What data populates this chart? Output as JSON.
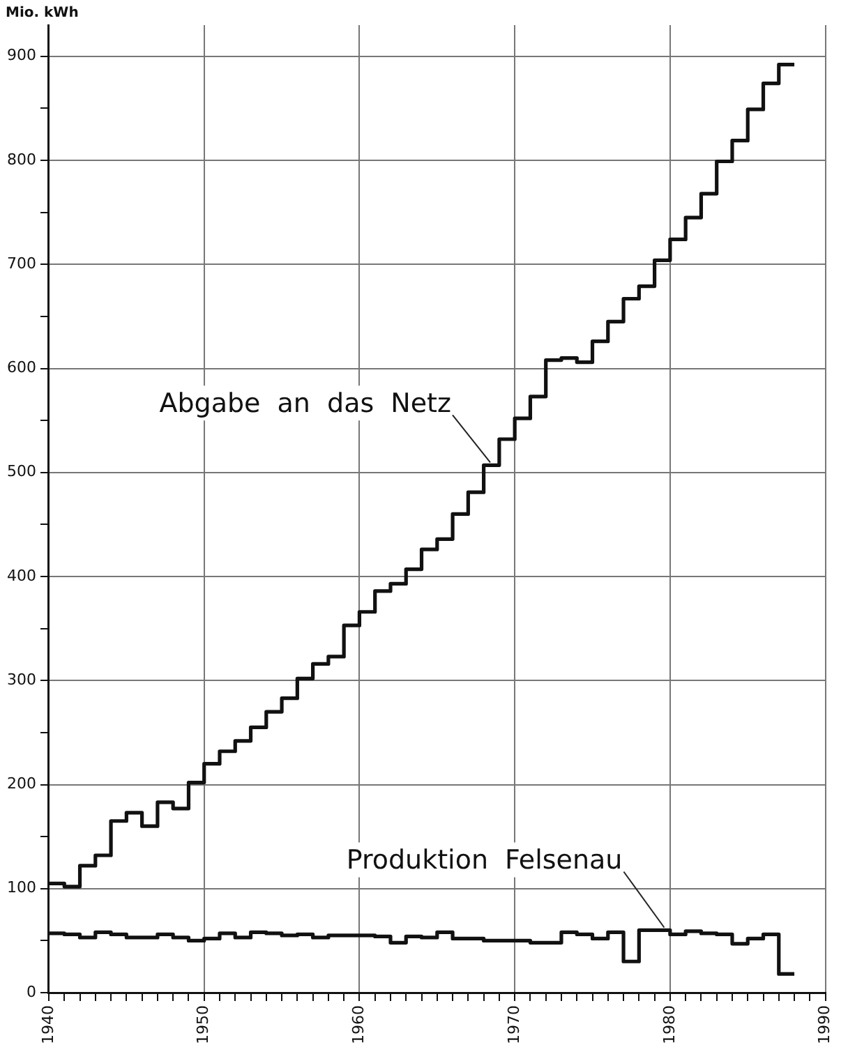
{
  "chart_data": {
    "type": "step",
    "ylabel": "Mio. kWh",
    "marker": "none",
    "grid": true,
    "x": [
      1940,
      1941,
      1942,
      1943,
      1944,
      1945,
      1946,
      1947,
      1948,
      1949,
      1950,
      1951,
      1952,
      1953,
      1954,
      1955,
      1956,
      1957,
      1958,
      1959,
      1960,
      1961,
      1962,
      1963,
      1964,
      1965,
      1966,
      1967,
      1968,
      1969,
      1970,
      1971,
      1972,
      1973,
      1974,
      1975,
      1976,
      1977,
      1978,
      1979,
      1980,
      1981,
      1982,
      1983,
      1984,
      1985,
      1986,
      1987,
      1988
    ],
    "xlim": [
      1940,
      1990
    ],
    "xticks": [
      1940,
      {
        "value": 1941,
        "label": null
      },
      {
        "value": 1942,
        "label": null
      },
      {
        "value": 1943,
        "label": null
      },
      {
        "value": 1944,
        "label": null
      },
      {
        "value": 1945,
        "label": null
      },
      {
        "value": 1946,
        "label": null
      },
      {
        "value": 1947,
        "label": null
      },
      {
        "value": 1948,
        "label": null
      },
      {
        "value": 1949,
        "label": null
      },
      1950,
      {
        "value": 1951,
        "label": null
      },
      {
        "value": 1952,
        "label": null
      },
      {
        "value": 1953,
        "label": null
      },
      {
        "value": 1954,
        "label": null
      },
      {
        "value": 1955,
        "label": null
      },
      {
        "value": 1956,
        "label": null
      },
      {
        "value": 1957,
        "label": null
      },
      {
        "value": 1958,
        "label": null
      },
      {
        "value": 1959,
        "label": null
      },
      1960,
      {
        "value": 1961,
        "label": null
      },
      {
        "value": 1962,
        "label": null
      },
      {
        "value": 1963,
        "label": null
      },
      {
        "value": 1964,
        "label": null
      },
      {
        "value": 1965,
        "label": null
      },
      {
        "value": 1966,
        "label": null
      },
      {
        "value": 1967,
        "label": null
      },
      {
        "value": 1968,
        "label": null
      },
      {
        "value": 1969,
        "label": null
      },
      1970,
      {
        "value": 1971,
        "label": null
      },
      {
        "value": 1972,
        "label": null
      },
      {
        "value": 1973,
        "label": null
      },
      {
        "value": 1974,
        "label": null
      },
      {
        "value": 1975,
        "label": null
      },
      {
        "value": 1976,
        "label": null
      },
      {
        "value": 1977,
        "label": null
      },
      {
        "value": 1978,
        "label": null
      },
      {
        "value": 1979,
        "label": null
      },
      1980,
      {
        "value": 1981,
        "label": null
      },
      {
        "value": 1982,
        "label": null
      },
      {
        "value": 1983,
        "label": null
      },
      {
        "value": 1984,
        "label": null
      },
      {
        "value": 1985,
        "label": null
      },
      {
        "value": 1986,
        "label": null
      },
      {
        "value": 1987,
        "label": null
      },
      {
        "value": 1988,
        "label": null
      },
      {
        "value": 1989,
        "label": null
      },
      1990
    ],
    "ylim": [
      0,
      930
    ],
    "yticks": [
      0,
      {
        "value": 50,
        "label": null
      },
      100,
      {
        "value": 150,
        "label": null
      },
      200,
      {
        "value": 250,
        "label": null
      },
      300,
      {
        "value": 350,
        "label": null
      },
      400,
      {
        "value": 450,
        "label": null
      },
      500,
      {
        "value": 550,
        "label": null
      },
      600,
      {
        "value": 650,
        "label": null
      },
      700,
      {
        "value": 750,
        "label": null
      },
      800,
      {
        "value": 850,
        "label": null
      },
      900
    ],
    "series": [
      {
        "name": "Abgabe an das Netz",
        "color": "#111111",
        "values": [
          105,
          102,
          122,
          132,
          165,
          173,
          160,
          183,
          177,
          202,
          220,
          232,
          242,
          255,
          270,
          283,
          302,
          316,
          323,
          353,
          366,
          386,
          393,
          407,
          426,
          436,
          460,
          481,
          507,
          532,
          552,
          573,
          608,
          610,
          606,
          626,
          645,
          667,
          679,
          704,
          724,
          745,
          768,
          799,
          819,
          849,
          874,
          892,
          892
        ]
      },
      {
        "name": "Produktion Felsenau",
        "color": "#111111",
        "values": [
          57,
          56,
          53,
          58,
          56,
          53,
          53,
          56,
          53,
          50,
          52,
          57,
          53,
          58,
          57,
          55,
          56,
          53,
          55,
          55,
          55,
          54,
          48,
          54,
          53,
          58,
          52,
          52,
          50,
          50,
          50,
          48,
          48,
          58,
          56,
          52,
          58,
          30,
          60,
          60,
          56,
          59,
          57,
          56,
          47,
          52,
          56,
          18,
          18
        ]
      }
    ]
  }
}
